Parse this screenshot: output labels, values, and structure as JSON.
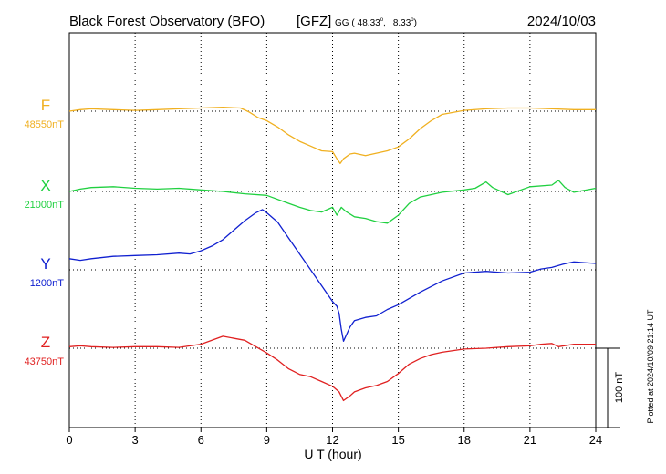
{
  "header": {
    "title": "Black Forest Observatory (BFO)",
    "org": "[GFZ]",
    "coord_prefix": "GG (",
    "lat": "48.33",
    "lon": "8.33",
    "coord_suffix": ")",
    "degree": "o",
    "date": "2024/10/03"
  },
  "footer": {
    "plotted": "Plotted at 2024/10/09 21:14 UT"
  },
  "chart_data": {
    "type": "line",
    "xlabel": "U T (hour)",
    "xlim": [
      0,
      24
    ],
    "xticks": [
      0,
      3,
      6,
      9,
      12,
      15,
      18,
      21,
      24
    ],
    "xtick_labels": [
      "0",
      "3",
      "6",
      "9",
      "12",
      "15",
      "18",
      "21",
      "24"
    ],
    "unit": "nT",
    "scale_bar": {
      "value": 100,
      "label": "100 nT"
    },
    "grid": true,
    "series": [
      {
        "name": "F",
        "baseline": 48550,
        "baseline_label": "48550nT",
        "color": "#f0b020",
        "x": [
          0,
          0.5,
          1,
          2,
          3,
          4,
          5,
          6,
          7,
          7.8,
          8.2,
          8.6,
          9,
          9.5,
          10,
          10.5,
          11,
          11.5,
          12,
          12.2,
          12.35,
          12.5,
          12.8,
          13,
          13.5,
          14,
          14.5,
          15,
          15.5,
          16,
          16.5,
          17,
          18,
          19,
          20,
          21,
          22,
          23,
          24
        ],
        "y": [
          48550,
          48552,
          48553,
          48552,
          48551,
          48552,
          48553,
          48554,
          48555,
          48554,
          48549,
          48542,
          48538,
          48530,
          48520,
          48512,
          48506,
          48500,
          48499,
          48490,
          48484,
          48490,
          48496,
          48497,
          48494,
          48497,
          48500,
          48505,
          48515,
          48528,
          48538,
          48546,
          48551,
          48553,
          48554,
          48554,
          48553,
          48552,
          48552
        ]
      },
      {
        "name": "X",
        "baseline": 21000,
        "baseline_label": "21000nT",
        "color": "#20d040",
        "x": [
          0,
          0.5,
          1,
          2,
          3,
          4,
          5,
          6,
          7,
          8,
          9,
          10,
          10.5,
          11,
          11.5,
          12,
          12.2,
          12.4,
          12.6,
          13,
          13.5,
          14,
          14.5,
          15,
          15.5,
          16,
          17,
          18,
          18.5,
          19,
          19.3,
          20,
          20.5,
          21,
          22,
          22.3,
          22.6,
          23,
          24
        ],
        "y": [
          21000,
          21003,
          21005,
          21006,
          21004,
          21003,
          21004,
          21002,
          21000,
          20997,
          20995,
          20985,
          20980,
          20976,
          20974,
          20980,
          20970,
          20980,
          20975,
          20968,
          20966,
          20962,
          20960,
          20970,
          20985,
          20993,
          20999,
          21002,
          21004,
          21012,
          21005,
          20996,
          21001,
          21006,
          21008,
          21014,
          21005,
          20999,
          21004
        ]
      },
      {
        "name": "Y",
        "baseline": 1200,
        "baseline_label": "1200nT",
        "color": "#1020d0",
        "x": [
          0,
          0.5,
          1,
          2,
          3,
          4,
          5,
          5.5,
          6,
          6.5,
          7,
          7.5,
          8,
          8.5,
          8.8,
          9,
          9.5,
          10,
          10.5,
          11,
          11.5,
          12,
          12.2,
          12.3,
          12.4,
          12.5,
          12.8,
          13,
          13.5,
          14,
          14.5,
          15,
          16,
          17,
          18,
          19,
          20,
          21,
          21.5,
          22,
          22.5,
          23,
          24
        ],
        "y": [
          1214,
          1212,
          1214,
          1217,
          1218,
          1219,
          1221,
          1220,
          1224,
          1230,
          1238,
          1250,
          1262,
          1272,
          1276,
          1272,
          1260,
          1240,
          1220,
          1200,
          1180,
          1160,
          1154,
          1145,
          1125,
          1110,
          1128,
          1136,
          1140,
          1142,
          1150,
          1156,
          1172,
          1186,
          1196,
          1198,
          1196,
          1197,
          1201,
          1203,
          1207,
          1210,
          1208
        ]
      },
      {
        "name": "Z",
        "baseline": 43750,
        "baseline_label": "43750nT",
        "color": "#e02020",
        "x": [
          0,
          0.5,
          1,
          2,
          3,
          4,
          5,
          6,
          7,
          8,
          8.5,
          9,
          9.5,
          10,
          10.5,
          11,
          11.5,
          12,
          12.3,
          12.5,
          12.8,
          13,
          13.5,
          14,
          14.5,
          15,
          15.5,
          16,
          16.5,
          17,
          18,
          19,
          20,
          21,
          21.5,
          22,
          22.3,
          23,
          24
        ],
        "y": [
          43752,
          43753,
          43752,
          43751,
          43752,
          43752,
          43751,
          43755,
          43765,
          43760,
          43752,
          43744,
          43735,
          43724,
          43717,
          43714,
          43708,
          43702,
          43695,
          43684,
          43690,
          43695,
          43700,
          43703,
          43708,
          43718,
          43730,
          43737,
          43742,
          43745,
          43749,
          43750,
          43752,
          43753,
          43755,
          43756,
          43752,
          43755,
          43755
        ]
      }
    ]
  }
}
